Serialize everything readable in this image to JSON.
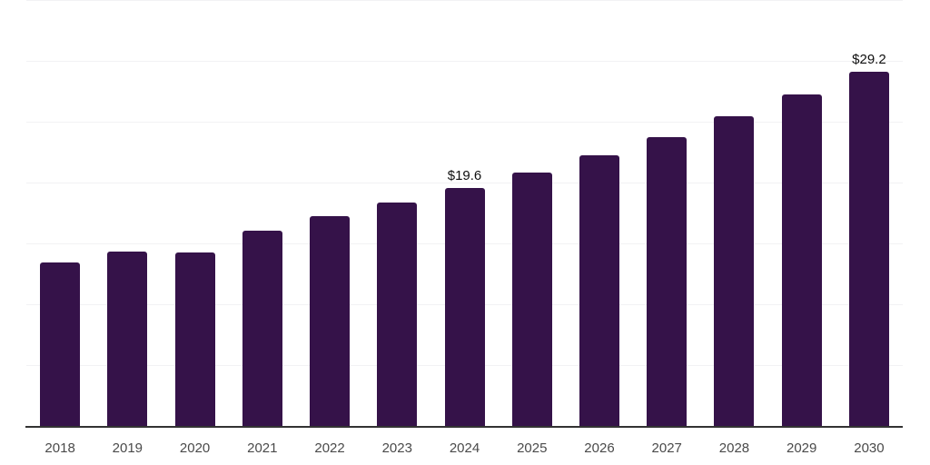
{
  "chart_data": {
    "type": "bar",
    "title": "",
    "categories": [
      "2018",
      "2019",
      "2020",
      "2021",
      "2022",
      "2023",
      "2024",
      "2025",
      "2026",
      "2027",
      "2028",
      "2029",
      "2030"
    ],
    "values": [
      13.5,
      14.4,
      14.3,
      16.1,
      17.3,
      18.4,
      19.6,
      20.9,
      22.3,
      23.8,
      25.5,
      27.3,
      29.2
    ],
    "value_labels": [
      "",
      "",
      "",
      "",
      "",
      "",
      "$19.6",
      "",
      "",
      "",
      "",
      "",
      "$29.2"
    ],
    "xlabel": "",
    "ylabel": "",
    "ylim": [
      0,
      35
    ],
    "gridline_step": 5,
    "grid": "horizontal",
    "legend": "none",
    "y_tick_labels_visible": false,
    "bar_color": "#351249",
    "grid_color": "#f2f2f4",
    "axis_color": "#333333",
    "tick_label_color": "#4a4a4a",
    "value_label_color": "#0f0f0f",
    "background_color": "#ffffff"
  }
}
